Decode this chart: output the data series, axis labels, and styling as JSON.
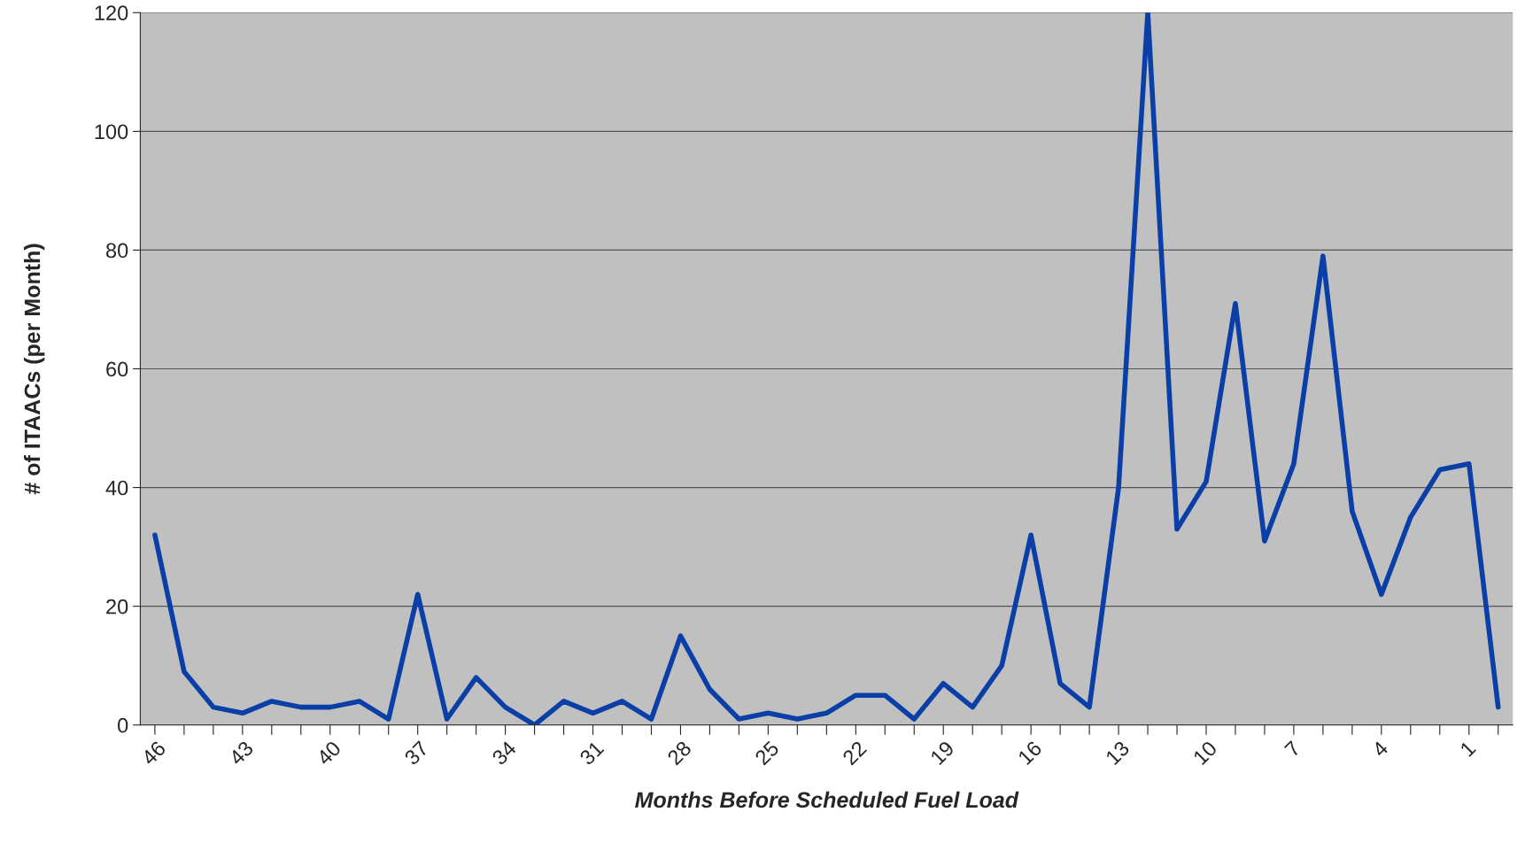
{
  "chart_data": {
    "type": "line",
    "xlabel": "Months Before Scheduled Fuel Load",
    "ylabel": "# of ITAACs (per Month)",
    "categories": [
      "46",
      null,
      null,
      "43",
      null,
      null,
      "40",
      null,
      null,
      "37",
      null,
      null,
      "34",
      null,
      null,
      "31",
      null,
      null,
      "28",
      null,
      null,
      "25",
      null,
      null,
      "22",
      null,
      null,
      "19",
      null,
      null,
      "16",
      null,
      null,
      "13",
      null,
      null,
      "10",
      null,
      null,
      "7",
      null,
      null,
      "4",
      null,
      null,
      "1",
      null
    ],
    "series": [
      {
        "color": "#0a3fa8",
        "values": [
          32,
          9,
          3,
          2,
          4,
          3,
          3,
          4,
          1,
          22,
          1,
          8,
          3,
          0,
          4,
          2,
          4,
          1,
          15,
          6,
          1,
          2,
          1,
          2,
          5,
          5,
          1,
          7,
          3,
          10,
          32,
          7,
          3,
          40,
          120,
          33,
          41,
          71,
          31,
          44,
          79,
          36,
          22,
          35,
          43,
          44,
          3
        ]
      }
    ],
    "ylim": [
      0,
      120
    ],
    "yticks": [
      0,
      20,
      40,
      60,
      80,
      100,
      120
    ],
    "grid": "y",
    "legend": false,
    "marker": "none",
    "line_style": "solid"
  }
}
